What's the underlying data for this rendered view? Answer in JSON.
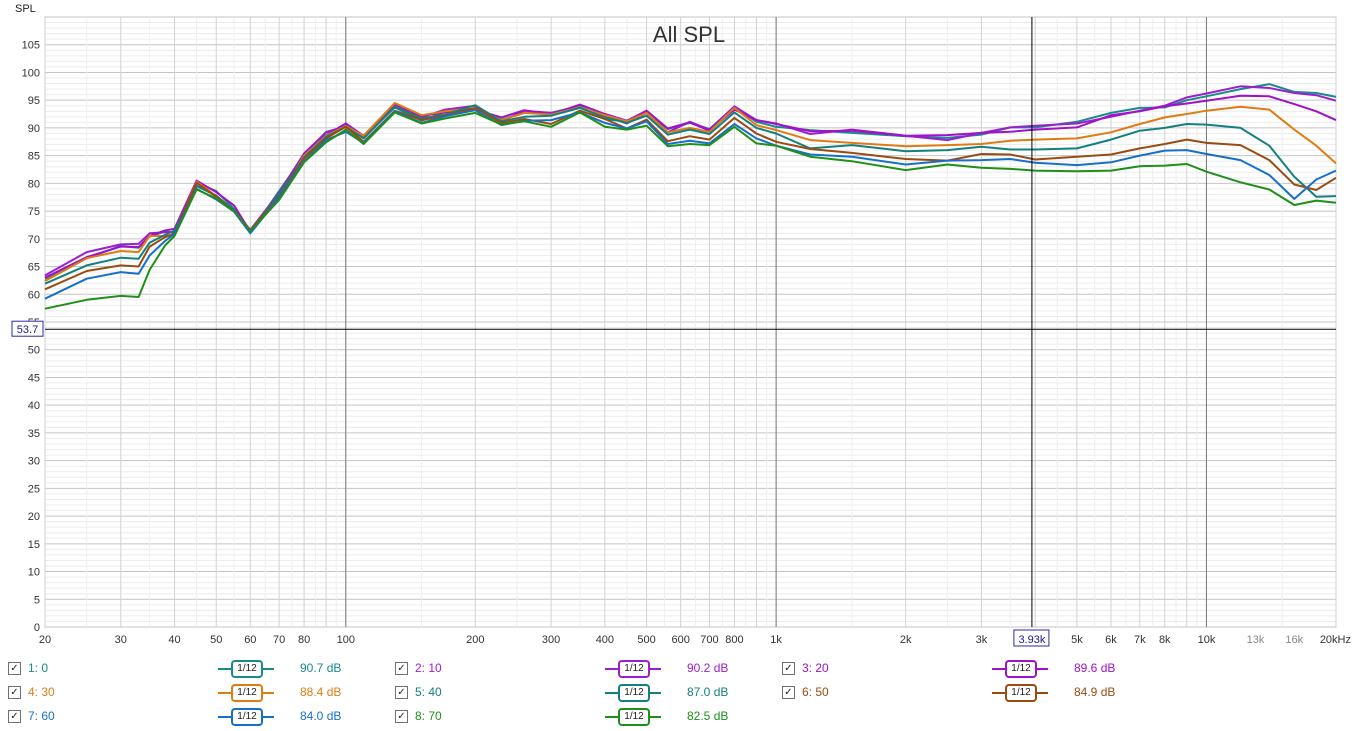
{
  "chart_data": {
    "type": "line",
    "title": "All SPL",
    "ylabel": "SPL",
    "xlabel": "",
    "x_scale": "log",
    "xlim": [
      20,
      20000
    ],
    "ylim": [
      0,
      110
    ],
    "grid": true,
    "x_ticks": [
      {
        "v": 20,
        "t": "20"
      },
      {
        "v": 30,
        "t": "30"
      },
      {
        "v": 40,
        "t": "40"
      },
      {
        "v": 50,
        "t": "50"
      },
      {
        "v": 60,
        "t": "60"
      },
      {
        "v": 70,
        "t": "70"
      },
      {
        "v": 80,
        "t": "80"
      },
      {
        "v": 100,
        "t": "100"
      },
      {
        "v": 200,
        "t": "200"
      },
      {
        "v": 300,
        "t": "300"
      },
      {
        "v": 400,
        "t": "400"
      },
      {
        "v": 500,
        "t": "500"
      },
      {
        "v": 600,
        "t": "600"
      },
      {
        "v": 700,
        "t": "700"
      },
      {
        "v": 800,
        "t": "800"
      },
      {
        "v": 1000,
        "t": "1k"
      },
      {
        "v": 2000,
        "t": "2k"
      },
      {
        "v": 3000,
        "t": "3k"
      },
      {
        "v": 5000,
        "t": "5k"
      },
      {
        "v": 6000,
        "t": "6k"
      },
      {
        "v": 7000,
        "t": "7k"
      },
      {
        "v": 8000,
        "t": "8k"
      },
      {
        "v": 10000,
        "t": "10k"
      },
      {
        "v": 13000,
        "t": "13k"
      },
      {
        "v": 16000,
        "t": "16k"
      },
      {
        "v": 20000,
        "t": "20kHz"
      }
    ],
    "y_ticks": [
      0,
      5,
      10,
      15,
      20,
      25,
      30,
      35,
      40,
      45,
      50,
      55,
      60,
      65,
      70,
      75,
      80,
      85,
      90,
      95,
      100,
      105
    ],
    "cursor": {
      "x": 3930,
      "x_label": "3.93k",
      "y": 53.7,
      "y_label": "53.7"
    },
    "x": [
      20,
      25,
      30,
      33,
      35,
      38,
      40,
      45,
      50,
      55,
      60,
      70,
      80,
      90,
      100,
      110,
      130,
      150,
      170,
      200,
      230,
      260,
      300,
      350,
      400,
      450,
      500,
      560,
      630,
      700,
      800,
      900,
      1000,
      1200,
      1500,
      2000,
      2500,
      3000,
      3500,
      4000,
      5000,
      6000,
      7000,
      8000,
      9000,
      10000,
      12000,
      14000,
      16000,
      18000,
      20000
    ],
    "series": [
      {
        "name": "1: 0",
        "color": "#1a8a8a",
        "values": [
          62.8,
          66.5,
          68.7,
          68.4,
          70.4,
          71.3,
          71.1,
          80.1,
          78.6,
          75.4,
          71.1,
          78.6,
          85.0,
          89.3,
          90.2,
          88.3,
          93.7,
          91.3,
          92.9,
          93.5,
          91.5,
          92.7,
          92.7,
          94.0,
          91.6,
          91.1,
          92.7,
          89.8,
          90.9,
          89.8,
          93.8,
          91.1,
          90.2,
          89.6,
          89.1,
          88.5,
          88.2,
          88.8,
          90.1,
          90.1,
          91.1,
          92.7,
          93.6,
          93.7,
          95.0,
          95.7,
          97.0,
          97.9,
          96.5,
          96.3,
          95.6
        ]
      },
      {
        "name": "2: 10",
        "color": "#9a1fd0",
        "values": [
          63.4,
          67.6,
          69.0,
          69.1,
          71.0,
          71.2,
          71.2,
          79.6,
          77.8,
          75.1,
          71.6,
          78.3,
          85.4,
          89.2,
          90.3,
          88.4,
          94.2,
          91.9,
          93.3,
          94.0,
          91.2,
          93.1,
          92.7,
          93.6,
          92.2,
          90.8,
          92.7,
          89.2,
          91.1,
          89.7,
          93.9,
          91.4,
          90.8,
          88.9,
          89.7,
          88.6,
          87.8,
          89.1,
          90.1,
          90.4,
          90.8,
          92.0,
          93.1,
          94.0,
          95.5,
          96.2,
          97.5,
          97.2,
          96.3,
          95.9,
          94.9
        ]
      },
      {
        "name": "3: 20",
        "color": "#a012c8",
        "values": [
          63.0,
          66.7,
          68.6,
          68.5,
          70.5,
          71.5,
          71.8,
          80.5,
          78.4,
          76.0,
          71.3,
          78.1,
          85.3,
          88.7,
          90.8,
          88.6,
          94.4,
          92.2,
          92.8,
          93.3,
          91.9,
          93.2,
          92.4,
          94.2,
          92.5,
          91.3,
          93.1,
          89.9,
          91.0,
          89.5,
          93.3,
          91.4,
          90.7,
          89.4,
          89.5,
          88.6,
          88.7,
          89.1,
          89.3,
          89.7,
          90.1,
          92.3,
          93.0,
          93.9,
          94.4,
          94.9,
          95.8,
          95.7,
          94.3,
          93.0,
          91.4
        ]
      },
      {
        "name": "4: 30",
        "color": "#e07b12",
        "values": [
          62.4,
          66.5,
          67.8,
          67.6,
          70.5,
          70.5,
          70.8,
          80.3,
          77.7,
          75.1,
          71.3,
          77.6,
          85.0,
          88.6,
          90.3,
          88.6,
          94.5,
          92.3,
          93.0,
          93.5,
          91.4,
          92.7,
          92.4,
          93.7,
          92.3,
          91.2,
          92.7,
          89.2,
          90.0,
          89.3,
          93.6,
          90.5,
          89.6,
          87.8,
          87.3,
          86.7,
          86.9,
          87.1,
          87.7,
          87.9,
          88.1,
          89.2,
          90.7,
          91.9,
          92.5,
          93.1,
          93.8,
          93.3,
          89.7,
          86.8,
          83.6
        ]
      },
      {
        "name": "5: 40",
        "color": "#138080",
        "values": [
          61.9,
          65.2,
          66.6,
          66.4,
          69.3,
          70.7,
          71.5,
          79.5,
          77.8,
          75.1,
          71.4,
          78.1,
          84.7,
          88.4,
          90.2,
          88.1,
          93.8,
          91.7,
          92.4,
          94.1,
          91.2,
          92.0,
          92.2,
          93.6,
          91.9,
          90.9,
          92.2,
          88.8,
          89.7,
          88.9,
          92.8,
          90.0,
          89.0,
          86.3,
          86.9,
          85.8,
          86.0,
          86.6,
          86.1,
          86.1,
          86.3,
          87.9,
          89.5,
          90.0,
          90.7,
          90.6,
          90.0,
          86.8,
          81.2,
          77.6,
          77.7
        ]
      },
      {
        "name": "6: 50",
        "color": "#9a4b12",
        "values": [
          60.9,
          64.2,
          65.2,
          65.0,
          68.6,
          70.3,
          70.9,
          80.1,
          77.6,
          74.9,
          71.5,
          77.6,
          84.5,
          88.1,
          90.2,
          87.5,
          93.1,
          91.4,
          92.2,
          93.6,
          90.9,
          91.6,
          90.7,
          93.1,
          91.6,
          89.9,
          91.5,
          87.6,
          88.5,
          87.9,
          91.8,
          89.0,
          87.5,
          86.2,
          85.5,
          84.4,
          84.1,
          85.3,
          85.2,
          84.3,
          84.8,
          85.2,
          86.3,
          87.1,
          87.9,
          87.3,
          86.9,
          84.2,
          79.8,
          78.8,
          81.0
        ]
      },
      {
        "name": "7: 60",
        "color": "#1670c8",
        "values": [
          59.2,
          62.8,
          64.0,
          63.7,
          67.0,
          69.6,
          70.9,
          79.0,
          77.1,
          74.9,
          71.0,
          77.4,
          84.0,
          87.8,
          89.3,
          87.3,
          93.0,
          90.9,
          92.1,
          93.2,
          90.5,
          91.3,
          91.4,
          92.8,
          90.9,
          89.9,
          91.2,
          87.1,
          87.7,
          87.2,
          90.7,
          88.1,
          86.8,
          85.2,
          84.8,
          83.4,
          84.1,
          84.2,
          84.4,
          83.7,
          83.3,
          83.8,
          85.0,
          85.9,
          86.0,
          85.3,
          84.2,
          81.5,
          77.2,
          80.7,
          82.3
        ]
      },
      {
        "name": "8: 70",
        "color": "#1e9018",
        "values": [
          57.4,
          59.0,
          59.7,
          59.5,
          64.4,
          68.8,
          70.5,
          78.9,
          77.3,
          74.9,
          71.4,
          77.0,
          83.8,
          87.4,
          89.7,
          87.1,
          92.8,
          90.8,
          91.7,
          92.7,
          90.6,
          91.2,
          90.2,
          92.8,
          90.2,
          89.7,
          90.4,
          86.7,
          87.1,
          86.9,
          90.2,
          87.2,
          86.8,
          84.8,
          84.0,
          82.4,
          83.4,
          82.8,
          82.6,
          82.3,
          82.2,
          82.3,
          83.1,
          83.2,
          83.5,
          82.1,
          80.2,
          78.9,
          76.1,
          76.9,
          76.5
        ]
      }
    ]
  },
  "legend": [
    {
      "label": "1: 0",
      "smoothing": "1/12",
      "avg": "90.7 dB",
      "color": "#1a8a8a",
      "checked": "✓"
    },
    {
      "label": "2: 10",
      "smoothing": "1/12",
      "avg": "90.2 dB",
      "color": "#9a1fd0",
      "checked": "✓"
    },
    {
      "label": "3: 20",
      "smoothing": "1/12",
      "avg": "89.6 dB",
      "color": "#a012c8",
      "checked": "✓"
    },
    {
      "label": "4: 30",
      "smoothing": "1/12",
      "avg": "88.4 dB",
      "color": "#e07b12",
      "checked": "✓"
    },
    {
      "label": "5: 40",
      "smoothing": "1/12",
      "avg": "87.0 dB",
      "color": "#138080",
      "checked": "✓"
    },
    {
      "label": "6: 50",
      "smoothing": "1/12",
      "avg": "84.9 dB",
      "color": "#9a4b12",
      "checked": "✓"
    },
    {
      "label": "7: 60",
      "smoothing": "1/12",
      "avg": "84.0 dB",
      "color": "#1670c8",
      "checked": "✓"
    },
    {
      "label": "8: 70",
      "smoothing": "1/12",
      "avg": "82.5 dB",
      "color": "#1e9018",
      "checked": "✓"
    }
  ]
}
